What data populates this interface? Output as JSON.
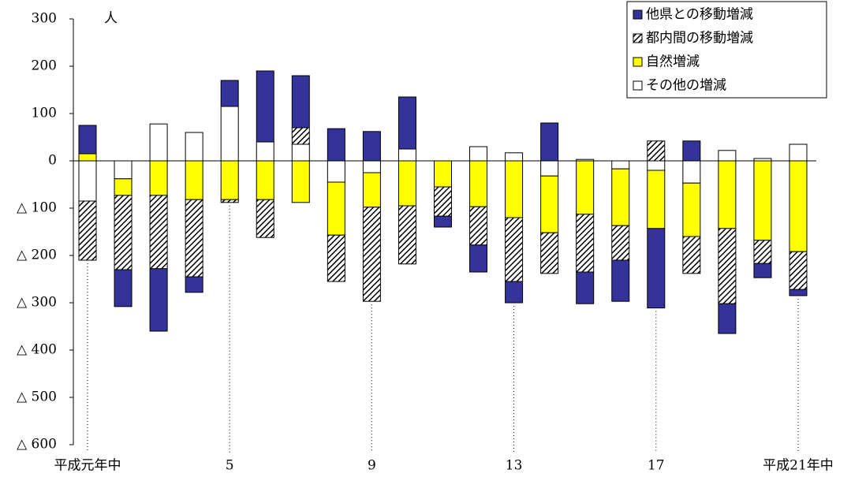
{
  "chart_data": {
    "type": "bar",
    "stacked": true,
    "y_unit": "人",
    "categories": [
      "平成元年中",
      null,
      null,
      null,
      "5",
      null,
      null,
      null,
      "9",
      null,
      null,
      null,
      "13",
      null,
      null,
      null,
      "17",
      null,
      null,
      null,
      "平成21年中"
    ],
    "series": [
      {
        "name": "他県との移動増減",
        "color": "#333399",
        "values": [
          60,
          -78,
          -132,
          -33,
          55,
          150,
          110,
          68,
          62,
          110,
          -23,
          -57,
          -45,
          80,
          -67,
          -87,
          -168,
          42,
          -63,
          -30,
          -13
        ]
      },
      {
        "name": "都内間の移動増減",
        "color": "hatch",
        "values": [
          -125,
          -157,
          -155,
          -163,
          -6,
          -80,
          35,
          -98,
          -199,
          -123,
          -62,
          -81,
          -135,
          -86,
          -122,
          -73,
          42,
          -78,
          -159,
          -49,
          -80
        ]
      },
      {
        "name": "自然増減",
        "color": "#ffff00",
        "values": [
          15,
          -35,
          -73,
          -82,
          -82,
          -82,
          -88,
          -112,
          -73,
          -95,
          -55,
          -97,
          -120,
          -120,
          -113,
          -120,
          -123,
          -113,
          -143,
          -168,
          -192
        ]
      },
      {
        "name": "その他の増減",
        "color": "#ffffff",
        "values": [
          -85,
          -38,
          78,
          60,
          115,
          40,
          35,
          -45,
          -25,
          25,
          0,
          30,
          17,
          -32,
          3,
          -17,
          -20,
          -47,
          22,
          5,
          35
        ]
      }
    ],
    "ylim": [
      -600,
      300
    ],
    "yticks": [
      300,
      200,
      100,
      0,
      {
        "value": -100,
        "label": "△ 100"
      },
      {
        "value": -200,
        "label": "△ 200"
      },
      {
        "value": -300,
        "label": "△ 300"
      },
      {
        "value": -400,
        "label": "△ 400"
      },
      {
        "value": -500,
        "label": "△ 500"
      },
      {
        "value": -600,
        "label": "△ 600"
      }
    ],
    "legend": "top-right"
  }
}
